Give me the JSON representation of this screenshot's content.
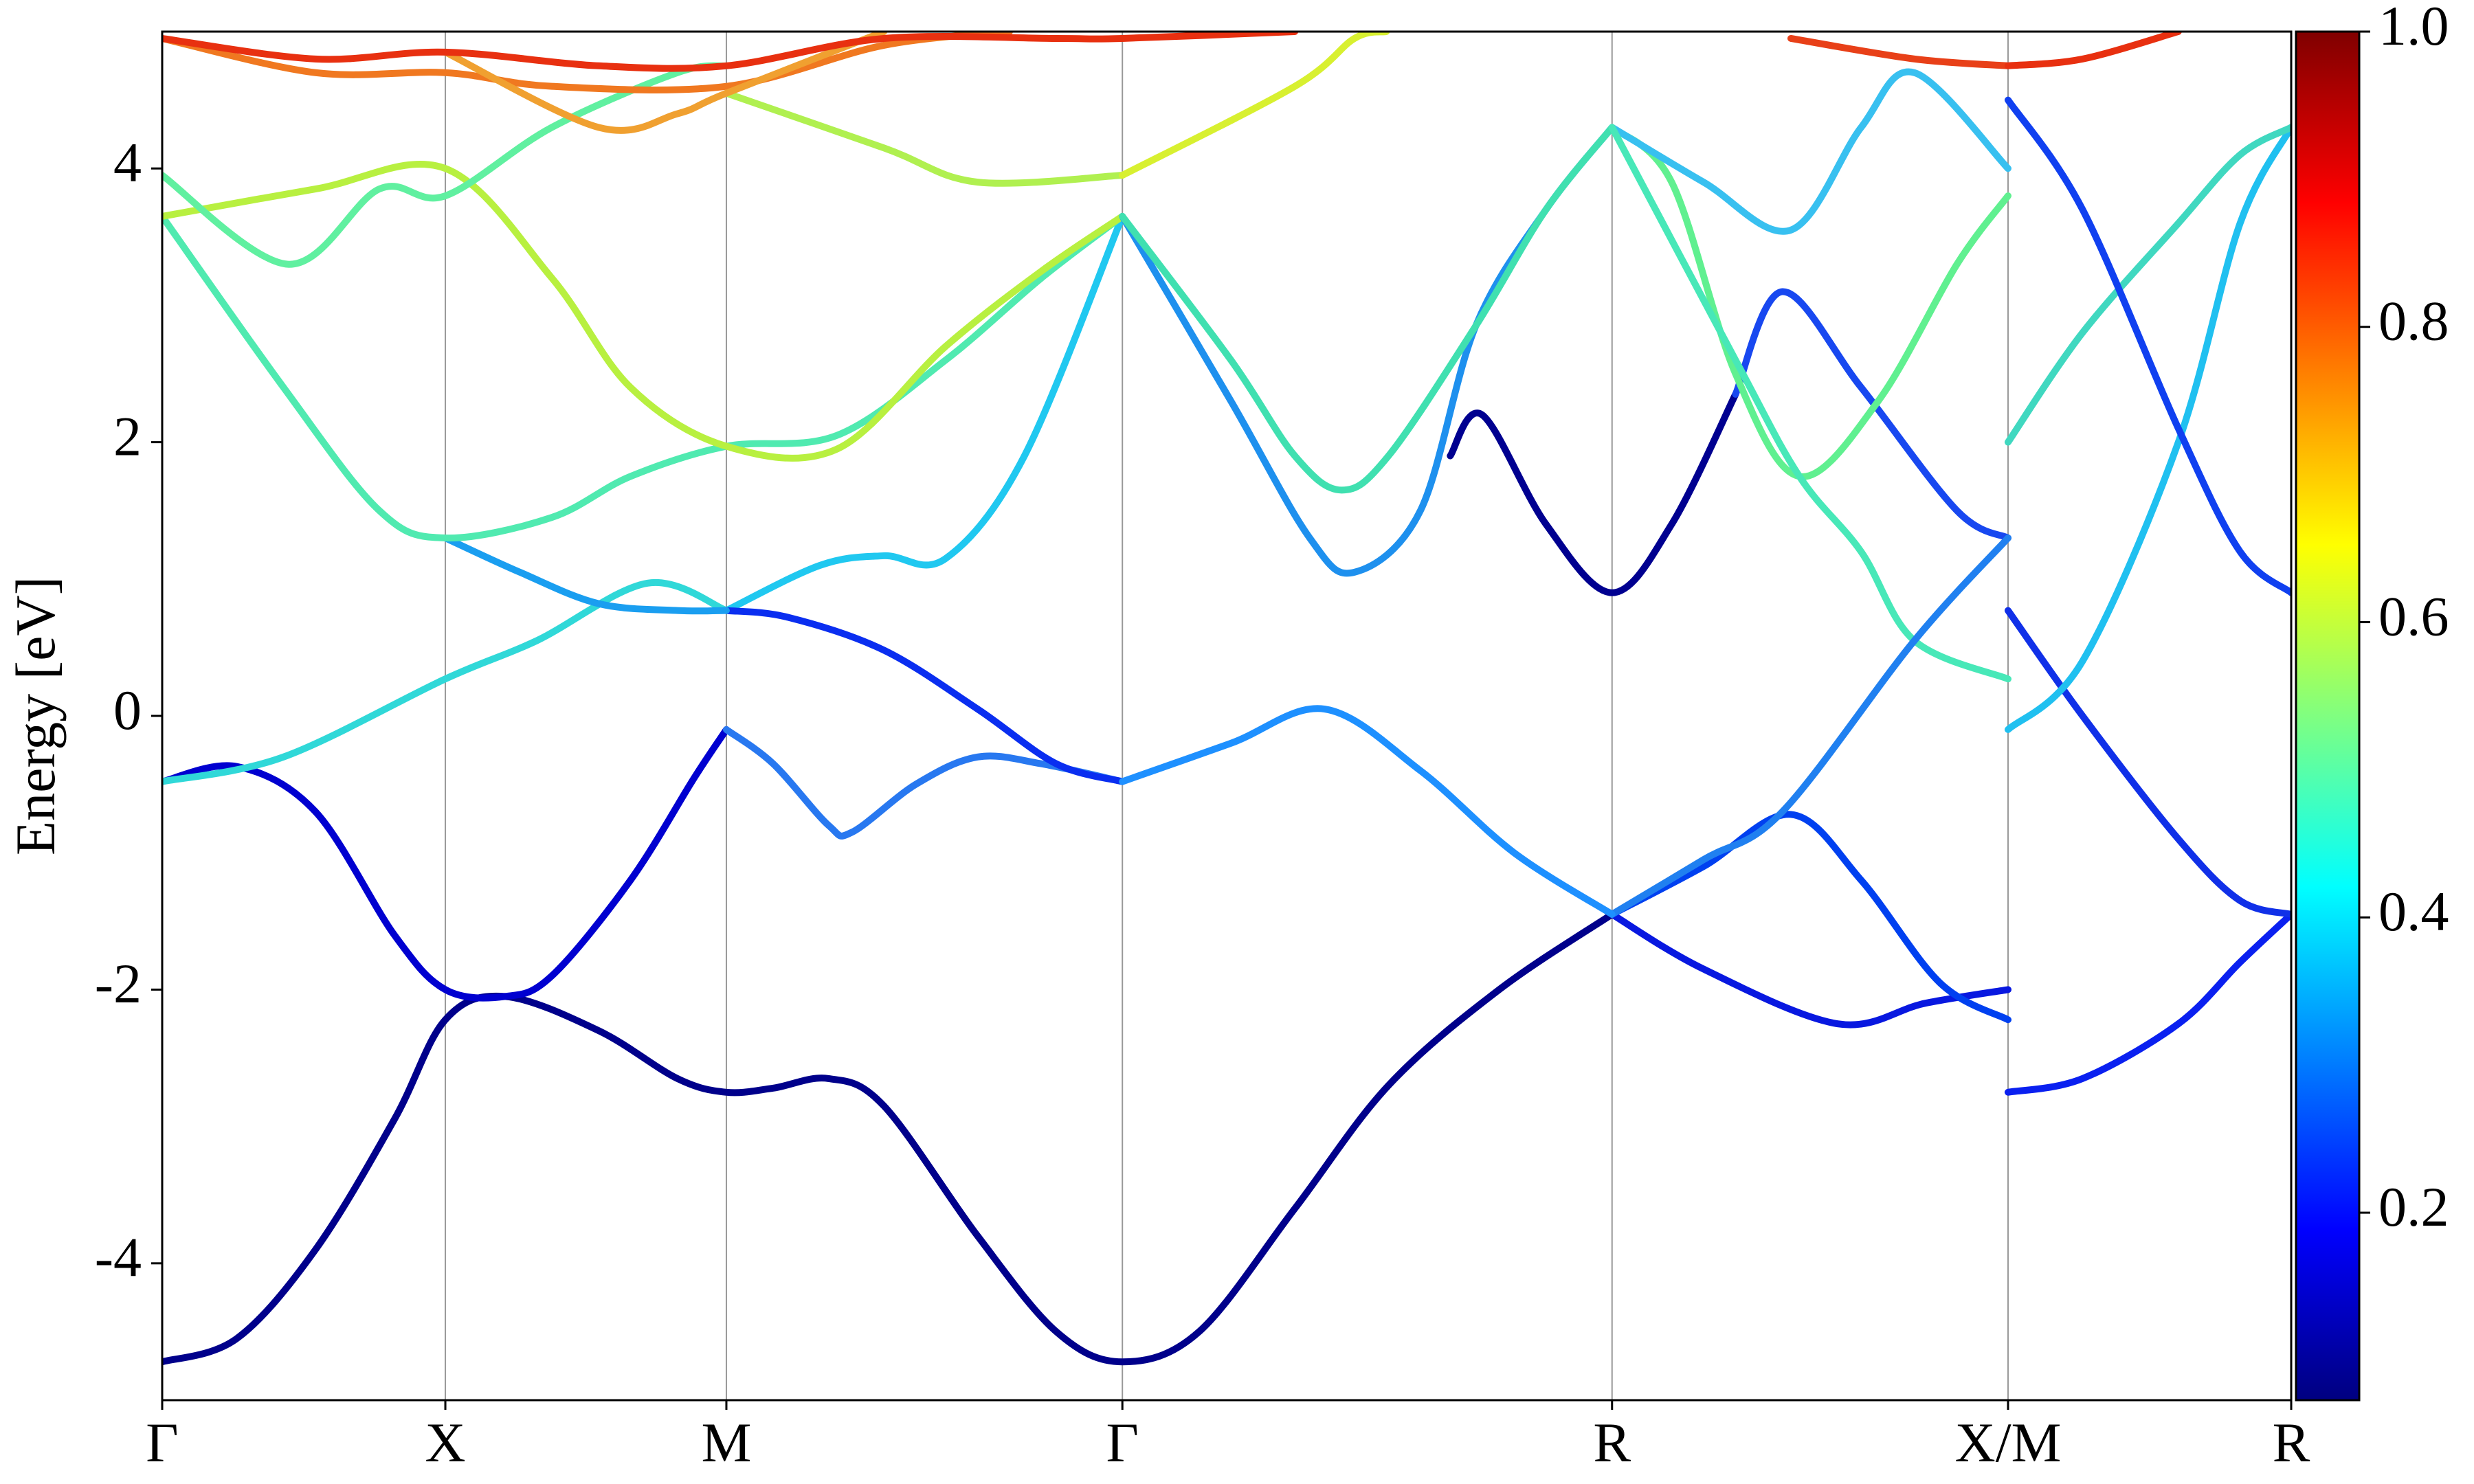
{
  "chart_data": {
    "type": "line",
    "ylabel": "Energy [eV]",
    "xlim": [
      0,
      1
    ],
    "ylim": [
      -5,
      5
    ],
    "xticks": [
      {
        "value": 0,
        "label": "Γ"
      },
      {
        "value": 0.133,
        "label": "X"
      },
      {
        "value": 0.265,
        "label": "M"
      },
      {
        "value": 0.451,
        "label": "Γ"
      },
      {
        "value": 0.681,
        "label": "R"
      },
      {
        "value": 0.867,
        "label": "X/M"
      },
      {
        "value": 1,
        "label": "R"
      }
    ],
    "yticks": [
      -4,
      -2,
      0,
      2,
      4
    ],
    "xgrid": true,
    "colorbar": {
      "colormap": "jet",
      "lim": [
        0.073,
        1.0
      ],
      "ticks": [
        0.2,
        0.4,
        0.6,
        0.8,
        {
          "value": 1.0,
          "label": "1.0"
        }
      ]
    },
    "series": [
      {
        "color": "#00008b",
        "x": [
          0,
          0.035,
          0.072,
          0.109,
          0.133,
          0.161,
          0.205,
          0.242,
          0.265,
          0.287,
          0.313,
          0.339,
          0.383,
          0.42,
          0.451,
          0.487,
          0.532,
          0.576,
          0.628,
          0.681
        ],
        "values": [
          -4.72,
          -4.55,
          -3.9,
          -2.95,
          -2.22,
          -2.05,
          -2.3,
          -2.65,
          -2.75,
          -2.72,
          -2.65,
          -2.85,
          -3.8,
          -4.5,
          -4.72,
          -4.5,
          -3.6,
          -2.7,
          -2.0,
          -1.45
        ]
      },
      {
        "color": "#0000d0",
        "x": [
          0,
          0.035,
          0.072,
          0.109,
          0.133,
          0.161,
          0.183,
          0.22,
          0.25,
          0.265
        ],
        "values": [
          -0.48,
          -0.37,
          -0.7,
          -1.6,
          -2.0,
          -2.05,
          -1.9,
          -1.2,
          -0.45,
          -0.1
        ]
      },
      {
        "color": "#2878f0",
        "x": [
          0.265,
          0.287,
          0.313,
          0.324,
          0.354,
          0.383,
          0.413,
          0.451
        ],
        "values": [
          -0.1,
          -0.35,
          -0.8,
          -0.85,
          -0.5,
          -0.3,
          -0.35,
          -0.48
        ]
      },
      {
        "color": "#30d8d8",
        "x": [
          0,
          0.057,
          0.133,
          0.176,
          0.228,
          0.265
        ],
        "values": [
          -0.48,
          -0.3,
          0.27,
          0.55,
          0.97,
          0.77
        ]
      },
      {
        "color": "#20c8f0",
        "x": [
          0.265,
          0.309,
          0.339,
          0.368,
          0.405,
          0.451
        ],
        "values": [
          0.77,
          1.1,
          1.17,
          1.15,
          1.9,
          3.65
        ]
      },
      {
        "color": "#0a2ef0",
        "x": [
          0.265,
          0.294,
          0.339,
          0.383,
          0.42,
          0.451
        ],
        "values": [
          0.77,
          0.72,
          0.48,
          0.05,
          -0.35,
          -0.48
        ]
      },
      {
        "color": "#1a9ef0",
        "x": [
          0.133,
          0.168,
          0.205,
          0.242,
          0.265
        ],
        "values": [
          1.3,
          1.05,
          0.82,
          0.77,
          0.77
        ]
      },
      {
        "color": "#50eab0",
        "x": [
          0,
          0.057,
          0.102,
          0.133,
          0.183,
          0.22,
          0.265,
          0.317,
          0.368,
          0.413,
          0.451
        ],
        "values": [
          3.65,
          2.4,
          1.5,
          1.3,
          1.45,
          1.75,
          1.97,
          2.05,
          2.6,
          3.2,
          3.65
        ]
      },
      {
        "color": "#b8f040",
        "x": [
          0,
          0.072,
          0.133,
          0.183,
          0.22,
          0.265,
          0.317,
          0.368,
          0.413,
          0.451
        ],
        "values": [
          3.65,
          3.85,
          4.0,
          3.2,
          2.4,
          1.97,
          1.95,
          2.7,
          3.25,
          3.65
        ]
      },
      {
        "color": "#1e90ee",
        "x": [
          0.451,
          0.502,
          0.539,
          0.56,
          0.591,
          0.617,
          0.65,
          0.681
        ],
        "values": [
          3.65,
          2.3,
          1.3,
          1.05,
          1.5,
          2.85,
          3.7,
          4.3
        ]
      },
      {
        "color": "#40e0b0",
        "x": [
          0.451,
          0.502,
          0.532,
          0.554,
          0.576,
          0.617,
          0.65,
          0.681
        ],
        "values": [
          3.65,
          2.6,
          1.9,
          1.65,
          1.9,
          2.85,
          3.7,
          4.3
        ]
      },
      {
        "color": "#000090",
        "x": [
          0.605,
          0.62,
          0.65,
          0.681,
          0.709,
          0.739
        ],
        "values": [
          1.9,
          2.2,
          1.4,
          0.9,
          1.4,
          2.35
        ]
      },
      {
        "color": "#1848f0",
        "x": [
          0.739,
          0.761,
          0.798,
          0.843,
          0.867
        ],
        "values": [
          2.35,
          3.1,
          2.4,
          1.5,
          1.3
        ]
      },
      {
        "color": "#60f090",
        "x": [
          0.681,
          0.709,
          0.739,
          0.769,
          0.806,
          0.843,
          0.867
        ],
        "values": [
          4.3,
          3.9,
          2.5,
          1.75,
          2.3,
          3.3,
          3.8
        ]
      },
      {
        "color": "#38c0f0",
        "x": [
          0.681,
          0.724,
          0.765,
          0.798,
          0.823,
          0.867
        ],
        "values": [
          4.3,
          3.9,
          3.55,
          4.3,
          4.7,
          4.0
        ]
      },
      {
        "color": "#48e8b8",
        "x": [
          0.681,
          0.739,
          0.769,
          0.798,
          0.823,
          0.867
        ],
        "values": [
          4.3,
          2.6,
          1.75,
          1.2,
          0.55,
          0.27
        ]
      },
      {
        "color": "#0818e0",
        "x": [
          0.681,
          0.724,
          0.787,
          0.828,
          0.867
        ],
        "values": [
          -1.45,
          -1.85,
          -2.25,
          -2.1,
          -2.0
        ]
      },
      {
        "color": "#0040f0",
        "x": [
          0.681,
          0.724,
          0.765,
          0.798,
          0.835,
          0.867
        ],
        "values": [
          -1.45,
          -1.1,
          -0.72,
          -1.2,
          -1.95,
          -2.22
        ]
      },
      {
        "color": "#2080f0",
        "x": [
          0.681,
          0.724,
          0.761,
          0.823,
          0.867
        ],
        "values": [
          -1.45,
          -1.05,
          -0.7,
          0.55,
          1.3
        ]
      },
      {
        "color": "#1e90ff",
        "x": [
          0.451,
          0.502,
          0.546,
          0.591,
          0.635,
          0.681
        ],
        "values": [
          -0.48,
          -0.2,
          0.05,
          -0.4,
          -1.0,
          -1.45
        ]
      },
      {
        "color": "#0a20f0",
        "x": [
          0.867,
          0.902,
          0.947,
          0.976,
          1
        ],
        "values": [
          -2.75,
          -2.65,
          -2.25,
          -1.8,
          -1.45
        ]
      },
      {
        "color": "#1030e8",
        "x": [
          0.867,
          0.902,
          0.947,
          0.976,
          1
        ],
        "values": [
          0.77,
          0.0,
          -0.9,
          -1.35,
          -1.45
        ]
      },
      {
        "color": "#20c0f0",
        "x": [
          0.867,
          0.902,
          0.947,
          0.976,
          1
        ],
        "values": [
          -0.1,
          0.4,
          2.0,
          3.6,
          4.3
        ]
      },
      {
        "color": "#40d8c0",
        "x": [
          0.867,
          0.902,
          0.947,
          0.976,
          1
        ],
        "values": [
          2.0,
          2.8,
          3.6,
          4.1,
          4.3
        ]
      },
      {
        "color": "#1040f0",
        "x": [
          0.867,
          0.902,
          0.947,
          0.976,
          1
        ],
        "values": [
          4.5,
          3.7,
          2.1,
          1.2,
          0.9
        ]
      },
      {
        "color": "#60f0a0",
        "x": [
          0,
          0.059,
          0.102,
          0.133,
          0.183,
          0.242,
          0.265
        ],
        "values": [
          3.95,
          3.3,
          3.85,
          3.8,
          4.3,
          4.7,
          4.75
        ]
      },
      {
        "color": "#b0f050",
        "x": [
          0.265,
          0.339,
          0.383,
          0.451
        ],
        "values": [
          4.55,
          4.15,
          3.9,
          3.95
        ]
      },
      {
        "color": "#d8f030",
        "x": [
          0.451,
          0.532,
          0.56,
          0.575
        ],
        "values": [
          3.95,
          4.6,
          4.95,
          5.0
        ]
      },
      {
        "color": "#f07820",
        "x": [
          0,
          0.072,
          0.133,
          0.183,
          0.265,
          0.339,
          0.398
        ],
        "values": [
          4.95,
          4.7,
          4.7,
          4.6,
          4.6,
          4.9,
          5.0
        ]
      },
      {
        "color": "#f0a030",
        "x": [
          0.133,
          0.205,
          0.242,
          0.265,
          0.339
        ],
        "values": [
          4.85,
          4.3,
          4.4,
          4.55,
          5.0
        ]
      },
      {
        "color": "#e83010",
        "x": [
          0,
          0.072,
          0.133,
          0.205,
          0.265,
          0.339,
          0.42,
          0.451,
          0.532
        ],
        "values": [
          4.95,
          4.8,
          4.85,
          4.75,
          4.75,
          4.95,
          4.95,
          4.95,
          5.0
        ]
      },
      {
        "color": "#e84018",
        "x": [
          0.765,
          0.823,
          0.867
        ],
        "values": [
          4.95,
          4.8,
          4.75
        ]
      },
      {
        "color": "#e83010",
        "x": [
          0.867,
          0.902,
          0.947
        ],
        "values": [
          4.75,
          4.8,
          5.0
        ]
      }
    ]
  }
}
